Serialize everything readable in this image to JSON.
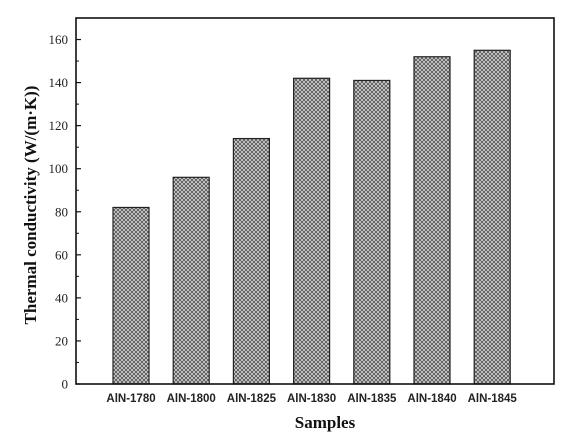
{
  "chart_data": {
    "type": "bar",
    "categories": [
      "AlN-1780",
      "AlN-1800",
      "AlN-1825",
      "AlN-1830",
      "AlN-1835",
      "AlN-1840",
      "AlN-1845"
    ],
    "values": [
      82,
      96,
      114,
      142,
      141,
      152,
      155
    ],
    "xlabel": "Samples",
    "ylabel": "Thermal conductivity (W/(m·K))",
    "ylim": [
      0,
      170
    ],
    "yticks": [
      "0",
      "20",
      "40",
      "60",
      "80",
      "100",
      "120",
      "140",
      "160"
    ],
    "grid": false,
    "legend": "none",
    "bar_fill": "crosshatch",
    "colors": {
      "bar_pattern": "#444444",
      "bar_fill_light": "#d8d8d8",
      "axis": "#111111"
    }
  }
}
